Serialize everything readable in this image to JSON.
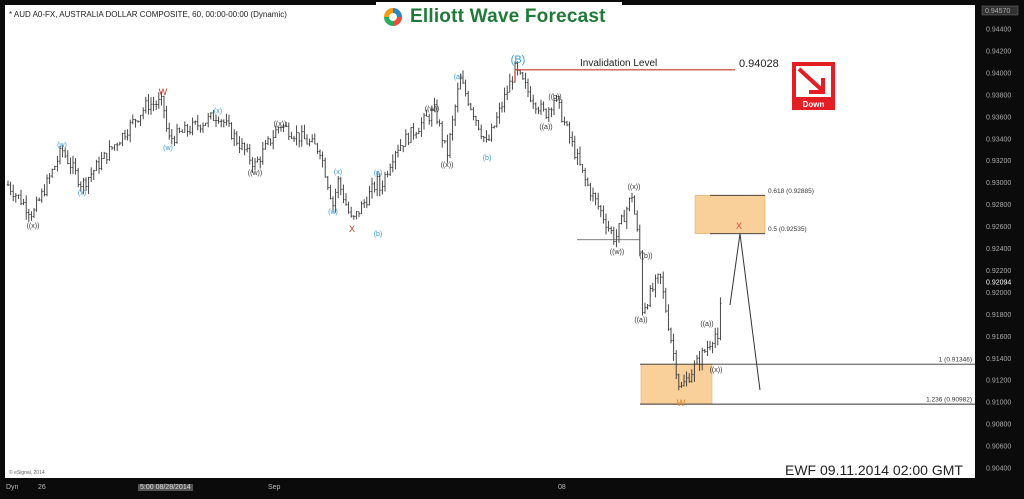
{
  "header": {
    "title": "* AUD A0-FX, AUSTRALIA DOLLAR COMPOSITE, 60, 00:00-00:00 (Dynamic)",
    "logo_text": "Elliott Wave Forecast"
  },
  "footer": {
    "stamp": "EWF 09.11.2014  02:00 GMT",
    "copyright": "© eSignal, 2014",
    "dyn_label": "Dyn"
  },
  "chart_data": {
    "type": "ohlc-bar",
    "yaxis": {
      "range": [
        0.9035,
        0.9457
      ],
      "ticks": [
        "0.94400",
        "0.94200",
        "0.94000",
        "0.93800",
        "0.93600",
        "0.93400",
        "0.93200",
        "0.93000",
        "0.92800",
        "0.92600",
        "0.92400",
        "0.92200",
        "0.92000",
        "0.91800",
        "0.91600",
        "0.91400",
        "0.91200",
        "0.91000",
        "0.90800",
        "0.90600",
        "0.90400"
      ],
      "top_value": "0.94570",
      "last_price": "0.92094"
    },
    "xaxis": {
      "ticks": [
        "26",
        "5:00 08/28/2014",
        "Sep",
        "08"
      ]
    },
    "path_prices": [
      0.9298,
      0.9271,
      0.933,
      0.9298,
      0.9371,
      0.9373,
      0.9339,
      0.9362,
      0.9316,
      0.9353,
      0.933,
      0.928,
      0.9302,
      0.9264,
      0.9302,
      0.929,
      0.933,
      0.9366,
      0.9325,
      0.9394,
      0.9334,
      0.94028,
      0.938,
      0.9362,
      0.9378,
      0.9302,
      0.9248,
      0.9289,
      0.9235,
      0.9184,
      0.9215,
      0.9111,
      0.915,
      0.9163,
      0.9152,
      0.92094
    ],
    "wave_labels": [
      {
        "text": "((x))",
        "color": "#333333"
      },
      {
        "text": "(w)",
        "color": "#3a9ad9"
      },
      {
        "text": "(x)",
        "color": "#3a9ad9"
      },
      {
        "text": "W",
        "color": "#c0392b"
      },
      {
        "text": "(w)",
        "color": "#3a9ad9"
      },
      {
        "text": "(x)",
        "color": "#3a9ad9"
      },
      {
        "text": "((w))",
        "color": "#333333"
      },
      {
        "text": "((x))",
        "color": "#333333"
      },
      {
        "text": "(w)",
        "color": "#3a9ad9"
      },
      {
        "text": "(x)",
        "color": "#3a9ad9"
      },
      {
        "text": "X",
        "color": "#c0392b"
      },
      {
        "text": "(a)",
        "color": "#3a9ad9"
      },
      {
        "text": "(b)",
        "color": "#3a9ad9"
      },
      {
        "text": "((w))",
        "color": "#333333"
      },
      {
        "text": "((x))",
        "color": "#333333"
      },
      {
        "text": "(a)",
        "color": "#3a9ad9"
      },
      {
        "text": "(b)",
        "color": "#3a9ad9"
      },
      {
        "text": "(B)",
        "color": "#3a9ad9"
      },
      {
        "text": "((a))",
        "color": "#333333"
      },
      {
        "text": "((b))",
        "color": "#333333"
      },
      {
        "text": "((w))",
        "color": "#333333"
      },
      {
        "text": "((x))",
        "color": "#333333"
      },
      {
        "text": "((b))",
        "color": "#333333"
      },
      {
        "text": "((a))",
        "color": "#333333"
      },
      {
        "text": "W",
        "color": "#e67e22"
      },
      {
        "text": "((a))",
        "color": "#333333"
      },
      {
        "text": "((x))",
        "color": "#333333"
      },
      {
        "text": "X",
        "color": "#e74c3c"
      }
    ],
    "invalidation": {
      "label": "Invalidation Level",
      "value": "0.94028",
      "price": 0.94028,
      "color": "#c0392b"
    },
    "fib_levels": [
      {
        "label": "0.618 (0.92885)",
        "price": 0.92885
      },
      {
        "label": "0.5 (0.92535)",
        "price": 0.92535
      },
      {
        "label": "1 (0.91346)",
        "price": 0.91346
      },
      {
        "label": "1.236 (0.90982)",
        "price": 0.90982
      }
    ],
    "zone_color": "#f9cf9a",
    "signal": {
      "label": "Down",
      "icon": "arrow-down-right-icon",
      "color": "#e31e24"
    }
  }
}
